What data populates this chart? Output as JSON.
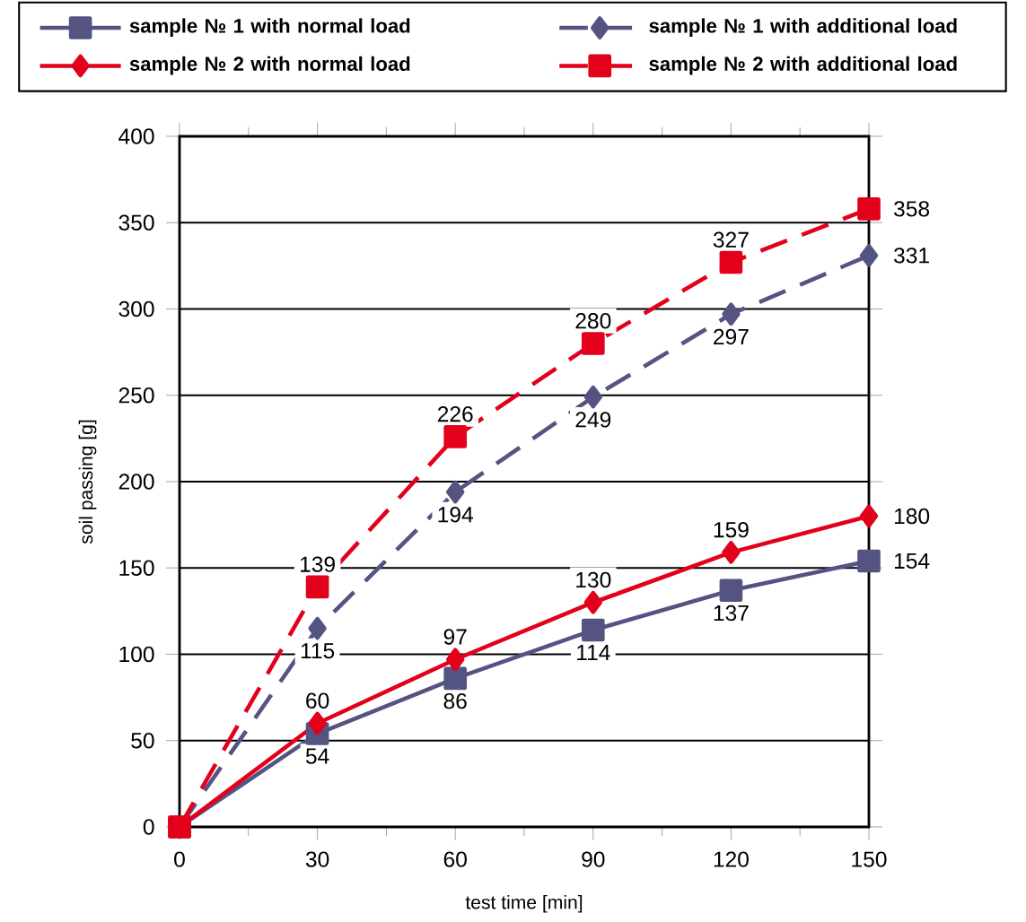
{
  "chart_data": {
    "type": "line",
    "xlabel": "test time [min]",
    "ylabel": "soil passing [g]",
    "x": [
      0,
      30,
      60,
      90,
      120,
      150
    ],
    "xlim": [
      0,
      150
    ],
    "xticks": [
      0,
      30,
      60,
      90,
      120,
      150
    ],
    "ylim": [
      0,
      400
    ],
    "yticks": [
      0,
      50,
      100,
      150,
      200,
      250,
      300,
      350,
      400
    ],
    "grid": "y",
    "legend": "top",
    "series": [
      {
        "name": "sample № 1 with normal load",
        "color": "#545482",
        "marker": "square",
        "line_style": "solid",
        "values": [
          0,
          54,
          86,
          114,
          137,
          154
        ],
        "value_labels": [
          null,
          "54",
          "86",
          "114",
          "137",
          "154"
        ]
      },
      {
        "name": "sample № 1 with additional load",
        "color": "#545482",
        "marker": "diamond",
        "line_style": "dashed",
        "values": [
          0,
          115,
          194,
          249,
          297,
          331
        ],
        "value_labels": [
          null,
          "115",
          "194",
          "249",
          "297",
          "331"
        ]
      },
      {
        "name": "sample № 2 with normal load",
        "color": "#e2001a",
        "marker": "diamond",
        "line_style": "solid",
        "values": [
          0,
          60,
          97,
          130,
          159,
          180
        ],
        "value_labels": [
          null,
          "60",
          "97",
          "130",
          "159",
          "180"
        ]
      },
      {
        "name": "sample № 2 with additional load",
        "color": "#e2001a",
        "marker": "square",
        "line_style": "dashed",
        "values": [
          0,
          139,
          226,
          280,
          327,
          358
        ],
        "value_labels": [
          null,
          "139",
          "226",
          "280",
          "327",
          "358"
        ]
      }
    ]
  }
}
